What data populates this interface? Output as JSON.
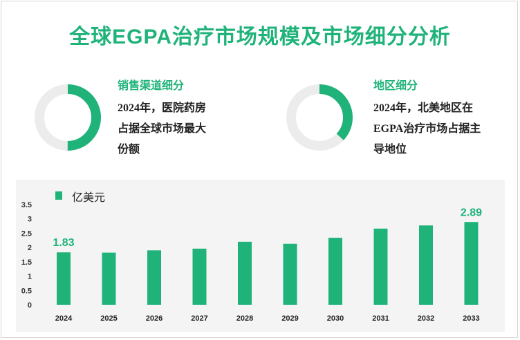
{
  "header": {
    "title": "全球EGPA治疗市场规模及市场细分分析"
  },
  "panels": [
    {
      "title": "销售渠道细分",
      "lines": [
        "2024年，医院药房",
        "占据全球市场最大",
        "份额"
      ],
      "ring_fraction": 0.5
    },
    {
      "title": "地区细分",
      "lines": [
        "2024年，北美地区在",
        "EGPA治疗市场占据主",
        "导地位"
      ],
      "ring_fraction": 0.37
    }
  ],
  "colors": {
    "accent": "#1fb37a",
    "ring_bg": "#ececec",
    "chart_bg": "#f4f4f4",
    "text": "#222222"
  },
  "chart_data": {
    "type": "bar",
    "categories": [
      "2024",
      "2025",
      "2026",
      "2027",
      "2028",
      "2029",
      "2030",
      "2031",
      "2032",
      "2033"
    ],
    "series": [
      {
        "name": "亿美元",
        "values": [
          1.83,
          1.82,
          1.9,
          1.96,
          2.2,
          2.13,
          2.34,
          2.66,
          2.77,
          2.89
        ]
      }
    ],
    "data_labels": [
      {
        "category": "2024",
        "text": "1.83"
      },
      {
        "category": "2033",
        "text": "2.89"
      }
    ],
    "yticks": [
      "0",
      "0.5",
      "1",
      "1.5",
      "2",
      "2.5",
      "3",
      "3.5"
    ],
    "ylim": [
      0,
      3.5
    ],
    "legend_position": "top-left",
    "grid": false
  }
}
